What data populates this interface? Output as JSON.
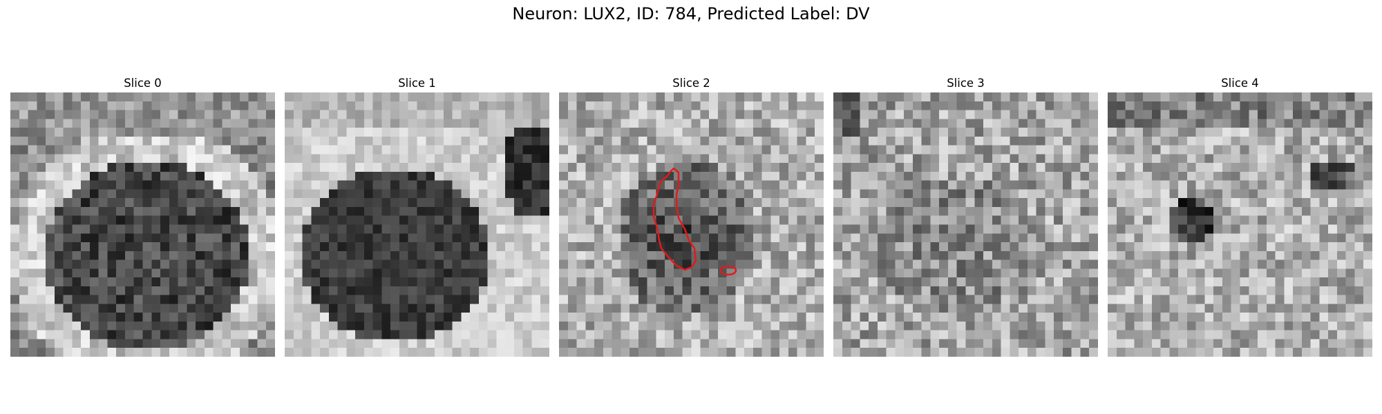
{
  "figure": {
    "title": "Neuron: LUX2, ID: 784, Predicted Label: DV"
  },
  "colormap": "gray",
  "contour_color": "#e31a1c",
  "panels": [
    {
      "title": "Slice 0",
      "has_contour": false
    },
    {
      "title": "Slice 1",
      "has_contour": false
    },
    {
      "title": "Slice 2",
      "has_contour": true
    },
    {
      "title": "Slice 3",
      "has_contour": false
    },
    {
      "title": "Slice 4",
      "has_contour": false
    }
  ]
}
